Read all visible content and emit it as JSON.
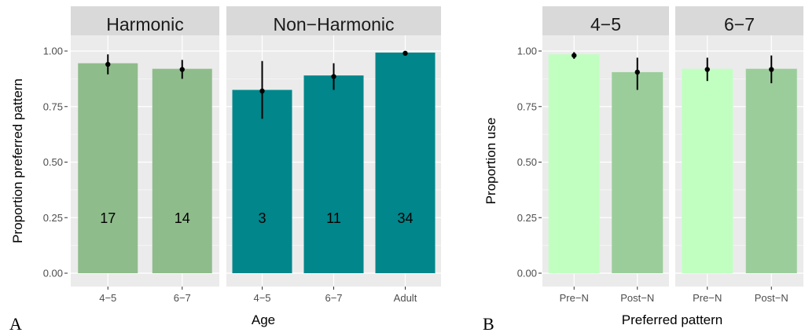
{
  "chart_data": [
    {
      "type": "bar",
      "panel_letter": "A",
      "xlabel": "Age",
      "ylabel": "Proportion preferred pattern",
      "ylim": [
        0,
        1.0
      ],
      "yticks": [
        "0.00",
        "0.25",
        "0.50",
        "0.75",
        "1.00"
      ],
      "facets": [
        {
          "title": "Harmonic",
          "categories": [
            "4−5",
            "6−7"
          ],
          "values": [
            0.945,
            0.92
          ],
          "points": [
            0.94,
            0.917
          ],
          "error_low": [
            0.895,
            0.875
          ],
          "error_high": [
            0.985,
            0.96
          ],
          "counts": [
            "17",
            "14"
          ],
          "bar_colors": [
            "#8fbc8b",
            "#8fbc8b"
          ]
        },
        {
          "title": "Non−Harmonic",
          "categories": [
            "4−5",
            "6−7",
            "Adult"
          ],
          "values": [
            0.825,
            0.89,
            0.993
          ],
          "points": [
            0.82,
            0.885,
            0.99
          ],
          "error_low": [
            0.695,
            0.825,
            0.99
          ],
          "error_high": [
            0.955,
            0.945,
            0.99
          ],
          "counts": [
            "3",
            "11",
            "34"
          ],
          "bar_colors": [
            "#00868b",
            "#00868b",
            "#00868b"
          ]
        }
      ]
    },
    {
      "type": "bar",
      "panel_letter": "B",
      "xlabel": "Preferred pattern",
      "ylabel": "Proportion use",
      "ylim": [
        0,
        1.0
      ],
      "yticks": [
        "0.00",
        "0.25",
        "0.50",
        "0.75",
        "1.00"
      ],
      "facets": [
        {
          "title": "4−5",
          "categories": [
            "Pre−N",
            "Post−N"
          ],
          "values": [
            0.985,
            0.905
          ],
          "points": [
            0.98,
            0.905
          ],
          "error_low": [
            0.965,
            0.825
          ],
          "error_high": [
            0.995,
            0.97
          ],
          "counts": [],
          "bar_colors": [
            "#c1ffc1",
            "#9bcd9b"
          ]
        },
        {
          "title": "6−7",
          "categories": [
            "Pre−N",
            "Post−N"
          ],
          "values": [
            0.92,
            0.92
          ],
          "points": [
            0.917,
            0.917
          ],
          "error_low": [
            0.865,
            0.855
          ],
          "error_high": [
            0.97,
            0.98
          ],
          "counts": [],
          "bar_colors": [
            "#c1ffc1",
            "#9bcd9b"
          ]
        }
      ]
    }
  ],
  "colors": {
    "panel_background": "#ebebeb",
    "strip_background": "#d9d9d9",
    "gridline": "#ffffff"
  }
}
